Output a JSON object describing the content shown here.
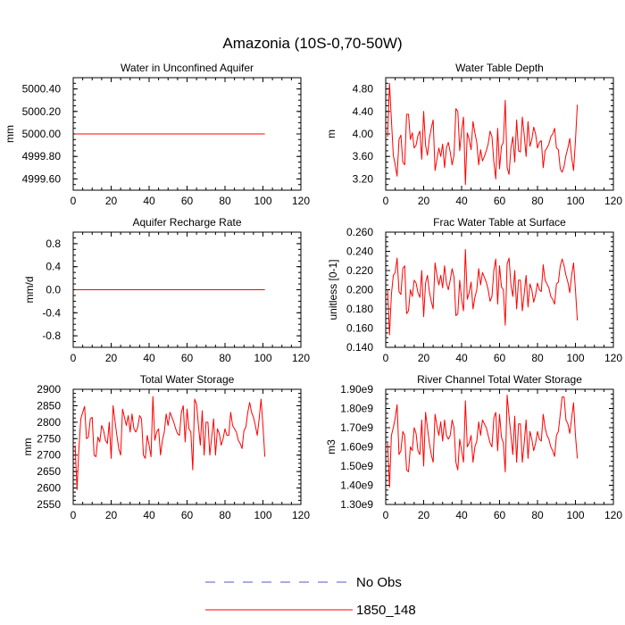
{
  "figure_title": "Amazonia (10S-0,70-50W)",
  "legend": {
    "entries": [
      {
        "label": "No Obs",
        "color": "#5555cc",
        "style": "dashed"
      },
      {
        "label": "1850_148",
        "color": "#ff0000",
        "style": "solid"
      }
    ]
  },
  "colors": {
    "series": "#ff0000",
    "obs": "#5555cc",
    "axis": "#000000"
  },
  "chart_data": [
    {
      "type": "line",
      "title": "Water in Unconfined Aquifer",
      "xlabel": "",
      "ylabel": "mm",
      "xlim": [
        0,
        120
      ],
      "ylim": [
        4999.5,
        5000.5
      ],
      "xticks": [
        0,
        20,
        40,
        60,
        80,
        100,
        120
      ],
      "xtick_labels": [
        "0",
        "20",
        "40",
        "60",
        "80",
        "100",
        "120"
      ],
      "yticks": [
        4999.6,
        4999.8,
        5000.0,
        5000.2,
        5000.4
      ],
      "ytick_labels": [
        "4999.60",
        "4999.80",
        "5000.00",
        "5000.20",
        "5000.40"
      ],
      "series": [
        {
          "name": "1850_148",
          "x_start": 1,
          "values": [
            5000,
            5000,
            5000,
            5000,
            5000,
            5000,
            5000,
            5000,
            5000,
            5000,
            5000,
            5000,
            5000,
            5000,
            5000,
            5000,
            5000,
            5000,
            5000,
            5000,
            5000,
            5000,
            5000,
            5000,
            5000,
            5000,
            5000,
            5000,
            5000,
            5000,
            5000,
            5000,
            5000,
            5000,
            5000,
            5000,
            5000,
            5000,
            5000,
            5000,
            5000,
            5000,
            5000,
            5000,
            5000,
            5000,
            5000,
            5000,
            5000,
            5000,
            5000,
            5000,
            5000,
            5000,
            5000,
            5000,
            5000,
            5000,
            5000,
            5000,
            5000,
            5000,
            5000,
            5000,
            5000,
            5000,
            5000,
            5000,
            5000,
            5000,
            5000,
            5000,
            5000,
            5000,
            5000,
            5000,
            5000,
            5000,
            5000,
            5000,
            5000,
            5000,
            5000,
            5000,
            5000,
            5000,
            5000,
            5000,
            5000,
            5000,
            5000,
            5000,
            5000,
            5000,
            5000,
            5000,
            5000,
            5000,
            5000,
            5000,
            5000
          ]
        }
      ]
    },
    {
      "type": "line",
      "title": "Water Table Depth",
      "xlabel": "",
      "ylabel": "m",
      "xlim": [
        0,
        120
      ],
      "ylim": [
        3.0,
        5.0
      ],
      "xticks": [
        0,
        20,
        40,
        60,
        80,
        100,
        120
      ],
      "xtick_labels": [
        "0",
        "20",
        "40",
        "60",
        "80",
        "100",
        "120"
      ],
      "yticks": [
        3.2,
        3.6,
        4.0,
        4.4,
        4.8
      ],
      "ytick_labels": [
        "3.20",
        "3.60",
        "4.00",
        "4.40",
        "4.80"
      ],
      "series": [
        {
          "name": "1850_148",
          "x_start": 1,
          "values": [
            3.95,
            4.9,
            4.25,
            3.62,
            3.45,
            3.25,
            3.9,
            3.98,
            3.5,
            3.45,
            4.35,
            4.35,
            3.9,
            4.02,
            3.75,
            3.8,
            3.97,
            4.05,
            3.55,
            4.4,
            3.8,
            3.62,
            3.92,
            4.1,
            4.25,
            3.35,
            3.55,
            3.75,
            3.6,
            3.82,
            3.4,
            3.75,
            3.85,
            3.68,
            3.45,
            3.62,
            4.45,
            4.4,
            3.7,
            4.05,
            4.3,
            3.1,
            4.02,
            3.9,
            3.72,
            4.22,
            4.02,
            3.85,
            3.45,
            3.72,
            3.52,
            3.6,
            3.7,
            3.82,
            4.05,
            3.95,
            3.5,
            3.2,
            4.1,
            3.38,
            3.78,
            3.85,
            4.6,
            3.4,
            3.28,
            3.75,
            3.95,
            3.5,
            4.25,
            3.7,
            3.68,
            4.3,
            3.98,
            3.6,
            4.22,
            3.78,
            3.9,
            4.12,
            4.0,
            3.75,
            3.85,
            3.88,
            3.4,
            3.7,
            3.75,
            3.82,
            3.95,
            4.0,
            4.1,
            3.75,
            3.72,
            3.38,
            3.32,
            3.42,
            3.62,
            3.75,
            3.92,
            3.58,
            3.35,
            3.88,
            4.52
          ]
        }
      ]
    },
    {
      "type": "line",
      "title": "Aquifer Recharge Rate",
      "xlabel": "",
      "ylabel": "mm/d",
      "xlim": [
        0,
        120
      ],
      "ylim": [
        -1.0,
        1.0
      ],
      "xticks": [
        0,
        20,
        40,
        60,
        80,
        100,
        120
      ],
      "xtick_labels": [
        "0",
        "20",
        "40",
        "60",
        "80",
        "100",
        "120"
      ],
      "yticks": [
        -0.8,
        -0.4,
        0.0,
        0.4,
        0.8
      ],
      "ytick_labels": [
        "-0.8",
        "-0.4",
        "0.0",
        "0.4",
        "0.8"
      ],
      "series": [
        {
          "name": "1850_148",
          "x_start": 1,
          "values": [
            0,
            0,
            0,
            0,
            0,
            0,
            0,
            0,
            0,
            0,
            0,
            0,
            0,
            0,
            0,
            0,
            0,
            0,
            0,
            0,
            0,
            0,
            0,
            0,
            0,
            0,
            0,
            0,
            0,
            0,
            0,
            0,
            0,
            0,
            0,
            0,
            0,
            0,
            0,
            0,
            0,
            0,
            0,
            0,
            0,
            0,
            0,
            0,
            0,
            0,
            0,
            0,
            0,
            0,
            0,
            0,
            0,
            0,
            0,
            0,
            0,
            0,
            0,
            0,
            0,
            0,
            0,
            0,
            0,
            0,
            0,
            0,
            0,
            0,
            0,
            0,
            0,
            0,
            0,
            0,
            0,
            0,
            0,
            0,
            0,
            0,
            0,
            0,
            0,
            0,
            0,
            0,
            0,
            0,
            0,
            0,
            0,
            0,
            0,
            0,
            0
          ]
        }
      ]
    },
    {
      "type": "line",
      "title": "Frac Water Table at Surface",
      "xlabel": "",
      "ylabel": "unitless [0-1]",
      "xlim": [
        0,
        120
      ],
      "ylim": [
        0.14,
        0.26
      ],
      "xticks": [
        0,
        20,
        40,
        60,
        80,
        100,
        120
      ],
      "xtick_labels": [
        "0",
        "20",
        "40",
        "60",
        "80",
        "100",
        "120"
      ],
      "yticks": [
        0.14,
        0.16,
        0.18,
        0.2,
        0.22,
        0.24,
        0.26
      ],
      "ytick_labels": [
        "0.140",
        "0.160",
        "0.180",
        "0.200",
        "0.220",
        "0.240",
        "0.260"
      ],
      "series": [
        {
          "name": "1850_148",
          "x_start": 1,
          "values": [
            0.2,
            0.153,
            0.195,
            0.215,
            0.218,
            0.233,
            0.198,
            0.195,
            0.222,
            0.225,
            0.175,
            0.178,
            0.2,
            0.193,
            0.21,
            0.207,
            0.197,
            0.192,
            0.22,
            0.172,
            0.207,
            0.215,
            0.198,
            0.188,
            0.18,
            0.228,
            0.215,
            0.205,
            0.215,
            0.202,
            0.225,
            0.207,
            0.2,
            0.21,
            0.222,
            0.213,
            0.173,
            0.175,
            0.21,
            0.19,
            0.178,
            0.242,
            0.19,
            0.197,
            0.208,
            0.18,
            0.192,
            0.2,
            0.222,
            0.205,
            0.218,
            0.213,
            0.208,
            0.2,
            0.188,
            0.193,
            0.22,
            0.232,
            0.185,
            0.225,
            0.203,
            0.2,
            0.163,
            0.227,
            0.233,
            0.205,
            0.193,
            0.22,
            0.18,
            0.21,
            0.21,
            0.178,
            0.196,
            0.215,
            0.182,
            0.206,
            0.2,
            0.187,
            0.195,
            0.207,
            0.2,
            0.198,
            0.226,
            0.21,
            0.206,
            0.202,
            0.193,
            0.19,
            0.185,
            0.206,
            0.208,
            0.225,
            0.232,
            0.225,
            0.215,
            0.208,
            0.197,
            0.215,
            0.228,
            0.2,
            0.168
          ]
        }
      ]
    },
    {
      "type": "line",
      "title": "Total Water Storage",
      "xlabel": "",
      "ylabel": "mm",
      "xlim": [
        0,
        120
      ],
      "ylim": [
        2550,
        2900
      ],
      "xticks": [
        0,
        20,
        40,
        60,
        80,
        100,
        120
      ],
      "xtick_labels": [
        "0",
        "20",
        "40",
        "60",
        "80",
        "100",
        "120"
      ],
      "yticks": [
        2550,
        2600,
        2650,
        2700,
        2750,
        2800,
        2850,
        2900
      ],
      "ytick_labels": [
        "2550",
        "2600",
        "2650",
        "2700",
        "2750",
        "2800",
        "2850",
        "2900"
      ],
      "series": [
        {
          "name": "1850_148",
          "x_start": 1,
          "values": [
            2730,
            2595,
            2720,
            2810,
            2830,
            2848,
            2750,
            2755,
            2810,
            2815,
            2700,
            2695,
            2755,
            2740,
            2790,
            2775,
            2745,
            2735,
            2800,
            2690,
            2850,
            2805,
            2760,
            2720,
            2700,
            2840,
            2815,
            2790,
            2820,
            2770,
            2825,
            2780,
            2770,
            2785,
            2820,
            2810,
            2700,
            2690,
            2760,
            2730,
            2695,
            2878,
            2745,
            2770,
            2780,
            2700,
            2745,
            2770,
            2825,
            2790,
            2830,
            2815,
            2800,
            2780,
            2765,
            2760,
            2830,
            2850,
            2740,
            2840,
            2780,
            2770,
            2655,
            2870,
            2855,
            2790,
            2730,
            2835,
            2700,
            2800,
            2800,
            2700,
            2755,
            2810,
            2700,
            2780,
            2765,
            2730,
            2750,
            2780,
            2760,
            2760,
            2830,
            2790,
            2780,
            2770,
            2745,
            2735,
            2720,
            2775,
            2785,
            2830,
            2860,
            2830,
            2815,
            2790,
            2760,
            2810,
            2870,
            2790,
            2695
          ]
        }
      ]
    },
    {
      "type": "line",
      "title": "River Channel Total Water Storage",
      "xlabel": "",
      "ylabel": "m3",
      "xlim": [
        0,
        120
      ],
      "ylim": [
        1300000000.0,
        1900000000.0
      ],
      "xticks": [
        0,
        20,
        40,
        60,
        80,
        100,
        120
      ],
      "xtick_labels": [
        "0",
        "20",
        "40",
        "60",
        "80",
        "100",
        "120"
      ],
      "yticks": [
        1300000000.0,
        1400000000.0,
        1500000000.0,
        1600000000.0,
        1700000000.0,
        1800000000.0,
        1900000000.0
      ],
      "ytick_labels": [
        "1.30e9",
        "1.40e9",
        "1.50e9",
        "1.60e9",
        "1.70e9",
        "1.80e9",
        "1.90e9"
      ],
      "series": [
        {
          "name": "1850_148",
          "x_start": 1,
          "values": [
            1620000000.0,
            1390000000.0,
            1660000000.0,
            1700000000.0,
            1750000000.0,
            1820000000.0,
            1560000000.0,
            1580000000.0,
            1680000000.0,
            1660000000.0,
            1480000000.0,
            1470000000.0,
            1600000000.0,
            1580000000.0,
            1700000000.0,
            1670000000.0,
            1580000000.0,
            1560000000.0,
            1740000000.0,
            1500000000.0,
            1780000000.0,
            1700000000.0,
            1620000000.0,
            1560000000.0,
            1520000000.0,
            1770000000.0,
            1710000000.0,
            1660000000.0,
            1730000000.0,
            1630000000.0,
            1740000000.0,
            1660000000.0,
            1640000000.0,
            1660000000.0,
            1740000000.0,
            1700000000.0,
            1520000000.0,
            1480000000.0,
            1640000000.0,
            1580000000.0,
            1520000000.0,
            1840000000.0,
            1600000000.0,
            1620000000.0,
            1660000000.0,
            1520000000.0,
            1600000000.0,
            1630000000.0,
            1730000000.0,
            1660000000.0,
            1740000000.0,
            1720000000.0,
            1700000000.0,
            1660000000.0,
            1620000000.0,
            1600000000.0,
            1750000000.0,
            1780000000.0,
            1580000000.0,
            1770000000.0,
            1650000000.0,
            1620000000.0,
            1470000000.0,
            1870000000.0,
            1760000000.0,
            1660000000.0,
            1560000000.0,
            1760000000.0,
            1520000000.0,
            1720000000.0,
            1720000000.0,
            1520000000.0,
            1620000000.0,
            1740000000.0,
            1540000000.0,
            1680000000.0,
            1640000000.0,
            1580000000.0,
            1620000000.0,
            1680000000.0,
            1640000000.0,
            1630000000.0,
            1770000000.0,
            1700000000.0,
            1660000000.0,
            1640000000.0,
            1600000000.0,
            1580000000.0,
            1550000000.0,
            1660000000.0,
            1680000000.0,
            1770000000.0,
            1860000000.0,
            1860000000.0,
            1740000000.0,
            1720000000.0,
            1670000000.0,
            1750000000.0,
            1830000000.0,
            1660000000.0,
            1540000000.0
          ]
        }
      ]
    }
  ]
}
